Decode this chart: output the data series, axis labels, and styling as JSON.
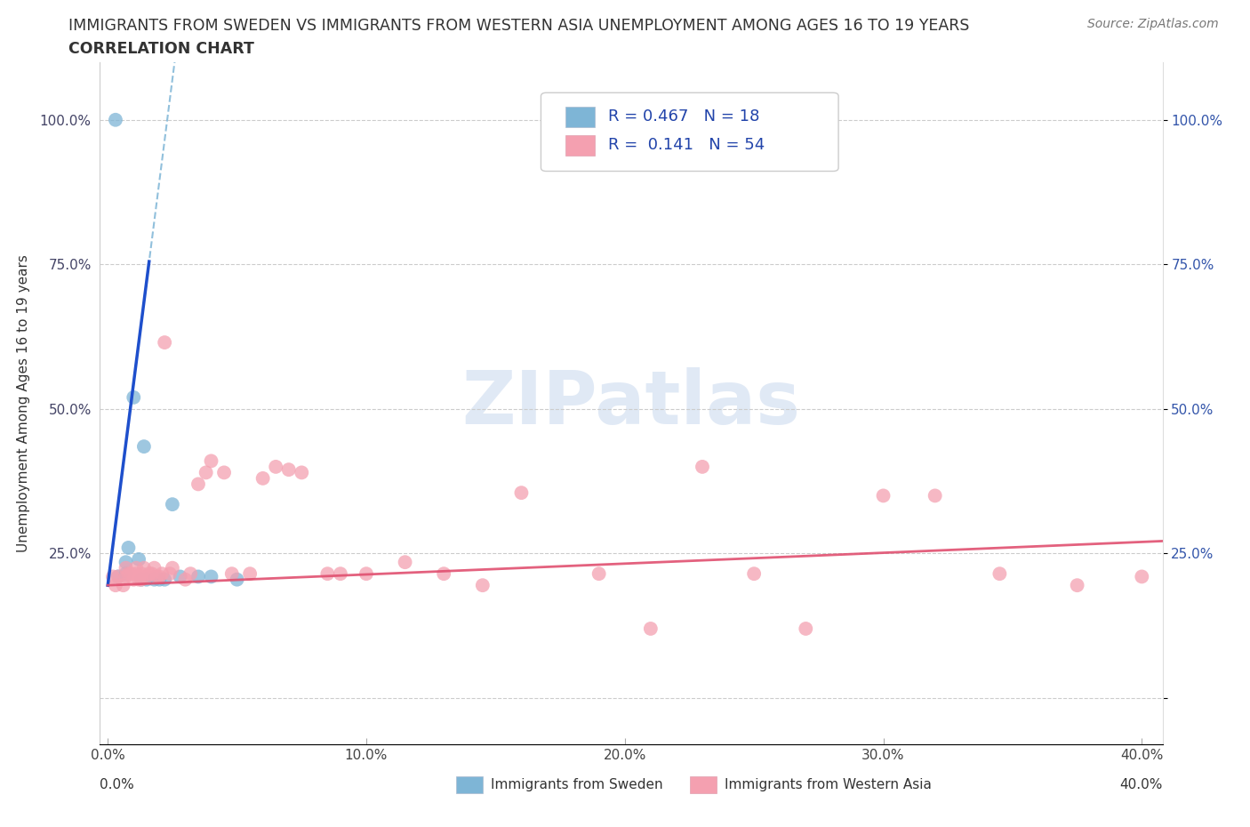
{
  "title_line1": "IMMIGRANTS FROM SWEDEN VS IMMIGRANTS FROM WESTERN ASIA UNEMPLOYMENT AMONG AGES 16 TO 19 YEARS",
  "title_line2": "CORRELATION CHART",
  "source_text": "Source: ZipAtlas.com",
  "ylabel": "Unemployment Among Ages 16 to 19 years",
  "xlim": [
    -0.003,
    0.408
  ],
  "ylim": [
    -0.08,
    1.1
  ],
  "yticks": [
    0.0,
    0.25,
    0.5,
    0.75,
    1.0
  ],
  "ytick_labels": [
    "",
    "25.0%",
    "50.0%",
    "75.0%",
    "100.0%"
  ],
  "xticks": [
    0.0,
    0.1,
    0.2,
    0.3,
    0.4
  ],
  "xtick_labels": [
    "0.0%",
    "10.0%",
    "20.0%",
    "30.0%",
    "40.0%"
  ],
  "sweden_color": "#7EB5D6",
  "western_asia_color": "#F4A0B0",
  "sweden_line_color": "#1E4FCC",
  "western_asia_line_color": "#E05070",
  "sweden_R": 0.467,
  "sweden_N": 18,
  "western_asia_R": 0.141,
  "western_asia_N": 54,
  "legend_label_1": "Immigrants from Sweden",
  "legend_label_2": "Immigrants from Western Asia",
  "watermark": "ZIPatlas",
  "sweden_x": [
    0.003,
    0.004,
    0.007,
    0.007,
    0.008,
    0.01,
    0.012,
    0.013,
    0.014,
    0.015,
    0.018,
    0.02,
    0.022,
    0.025,
    0.028,
    0.035,
    0.04,
    0.05
  ],
  "sweden_y": [
    1.0,
    0.21,
    0.215,
    0.235,
    0.26,
    0.52,
    0.24,
    0.205,
    0.435,
    0.205,
    0.205,
    0.205,
    0.205,
    0.335,
    0.21,
    0.21,
    0.21,
    0.205
  ],
  "western_asia_x": [
    0.002,
    0.003,
    0.004,
    0.006,
    0.007,
    0.007,
    0.008,
    0.009,
    0.01,
    0.011,
    0.011,
    0.012,
    0.013,
    0.013,
    0.014,
    0.015,
    0.016,
    0.017,
    0.018,
    0.019,
    0.02,
    0.021,
    0.022,
    0.024,
    0.025,
    0.03,
    0.032,
    0.035,
    0.038,
    0.04,
    0.045,
    0.048,
    0.055,
    0.06,
    0.065,
    0.07,
    0.075,
    0.085,
    0.09,
    0.1,
    0.115,
    0.13,
    0.145,
    0.16,
    0.19,
    0.21,
    0.23,
    0.25,
    0.27,
    0.3,
    0.32,
    0.345,
    0.375,
    0.4
  ],
  "western_asia_y": [
    0.21,
    0.195,
    0.21,
    0.195,
    0.21,
    0.225,
    0.215,
    0.215,
    0.205,
    0.225,
    0.215,
    0.205,
    0.215,
    0.205,
    0.225,
    0.21,
    0.215,
    0.215,
    0.225,
    0.21,
    0.21,
    0.215,
    0.615,
    0.215,
    0.225,
    0.205,
    0.215,
    0.37,
    0.39,
    0.41,
    0.39,
    0.215,
    0.215,
    0.38,
    0.4,
    0.395,
    0.39,
    0.215,
    0.215,
    0.215,
    0.235,
    0.215,
    0.195,
    0.355,
    0.215,
    0.12,
    0.4,
    0.215,
    0.12,
    0.35,
    0.35,
    0.215,
    0.195,
    0.21
  ]
}
